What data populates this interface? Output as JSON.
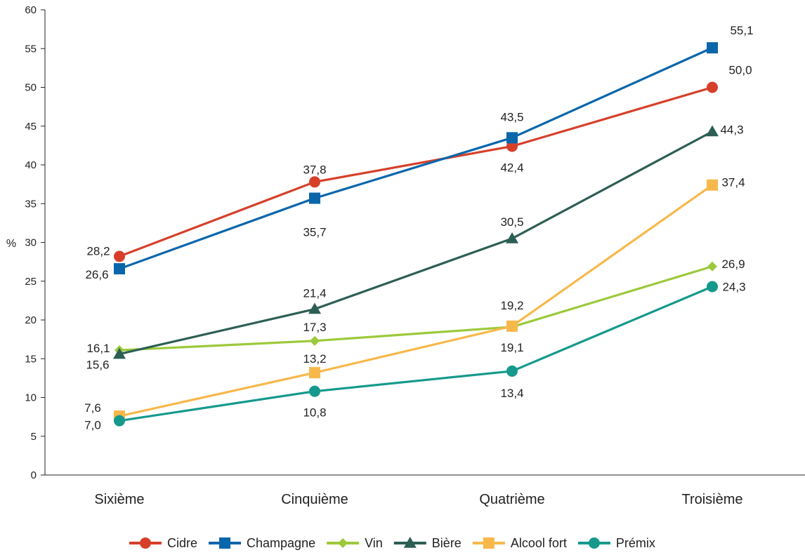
{
  "chart_data": {
    "type": "line",
    "ylabel": "%",
    "ylim": [
      0,
      60
    ],
    "yticks": [
      0,
      5,
      10,
      15,
      20,
      25,
      30,
      35,
      40,
      45,
      50,
      55,
      60
    ],
    "categories": [
      "Sixième",
      "Cinquième",
      "Quatrième",
      "Troisième"
    ],
    "legend_position": "bottom",
    "series": [
      {
        "name": "Cidre",
        "color": "#d6402a",
        "marker": "circle",
        "values": [
          28.2,
          37.8,
          42.4,
          50.0
        ],
        "labels": [
          "28,2",
          "37,8",
          "42,4",
          "50,0"
        ]
      },
      {
        "name": "Champagne",
        "color": "#0a66ab",
        "marker": "square",
        "values": [
          26.6,
          35.7,
          43.5,
          55.1
        ],
        "labels": [
          "26,6",
          "35,7",
          "43,5",
          "55,1"
        ]
      },
      {
        "name": "Vin",
        "color": "#9cc93b",
        "marker": "diamond",
        "values": [
          16.1,
          17.3,
          19.1,
          26.9
        ],
        "labels": [
          "16,1",
          "17,3",
          "19,1",
          "26,9"
        ]
      },
      {
        "name": "Bière",
        "color": "#2d5e55",
        "marker": "triangle",
        "values": [
          15.6,
          21.4,
          30.5,
          44.3
        ],
        "labels": [
          "15,6",
          "21,4",
          "30,5",
          "44,3"
        ]
      },
      {
        "name": "Alcool fort",
        "color": "#f7b84b",
        "marker": "square",
        "values": [
          7.6,
          13.2,
          19.2,
          37.4
        ],
        "labels": [
          "7,6",
          "13,2",
          "19,2",
          "37,4"
        ]
      },
      {
        "name": "Prémix",
        "color": "#15998c",
        "marker": "circle",
        "values": [
          7.0,
          10.8,
          13.4,
          24.3
        ],
        "labels": [
          "7,0",
          "10,8",
          "13,4",
          "24,3"
        ]
      }
    ]
  }
}
